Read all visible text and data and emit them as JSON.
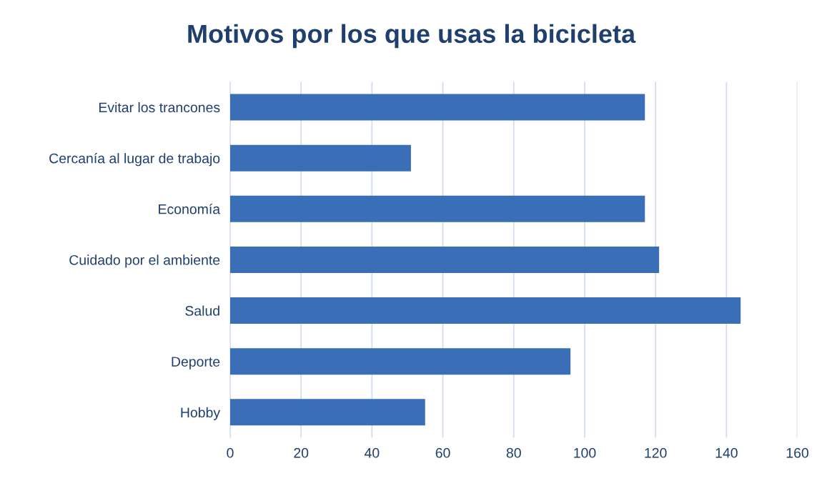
{
  "chart_data": {
    "type": "bar",
    "orientation": "horizontal",
    "title": "Motivos por los que usas la bicicleta",
    "categories": [
      "Evitar los trancones",
      "Cercanía al lugar de trabajo",
      "Economía",
      "Cuidado por el ambiente",
      "Salud",
      "Deporte",
      "Hobby"
    ],
    "values": [
      117,
      51,
      117,
      121,
      144,
      96,
      55
    ],
    "color": "#3a6fb8",
    "xlim": [
      0,
      160
    ],
    "xticks": [
      0,
      20,
      40,
      60,
      80,
      100,
      120,
      140,
      160
    ],
    "grid": "x",
    "legend": false
  }
}
